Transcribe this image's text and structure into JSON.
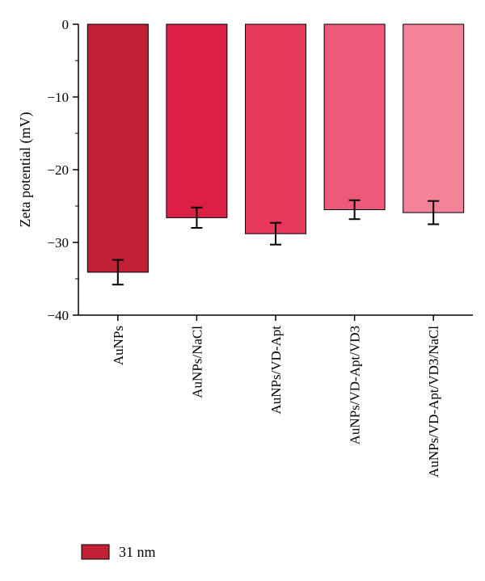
{
  "chart_data": {
    "type": "bar",
    "ylabel": "Zeta potential (mV)",
    "xlabel": "",
    "categories": [
      "AuNPs",
      "AuNPs/NaCl",
      "AuNPs/VD-Apt",
      "AuNPs/VD-Apt/VD3",
      "AuNPs/VD-Apt/VD3/NaCl"
    ],
    "series": [
      {
        "name": "31 nm",
        "values": [
          -34.1,
          -26.6,
          -28.8,
          -25.5,
          -25.9
        ],
        "errors": [
          1.7,
          1.4,
          1.5,
          1.3,
          1.6
        ]
      }
    ],
    "bar_colors": [
      "#c12037",
      "#dc1f44",
      "#e8395d",
      "#ee587a",
      "#f48399"
    ],
    "ylim": [
      -40,
      0
    ],
    "yticks": [
      0,
      -10,
      -20,
      -30,
      -40
    ],
    "ytick_labels": [
      "0",
      "−10",
      "−20",
      "−30",
      "−40"
    ],
    "grid": false,
    "legend_position": "bottom-left"
  }
}
